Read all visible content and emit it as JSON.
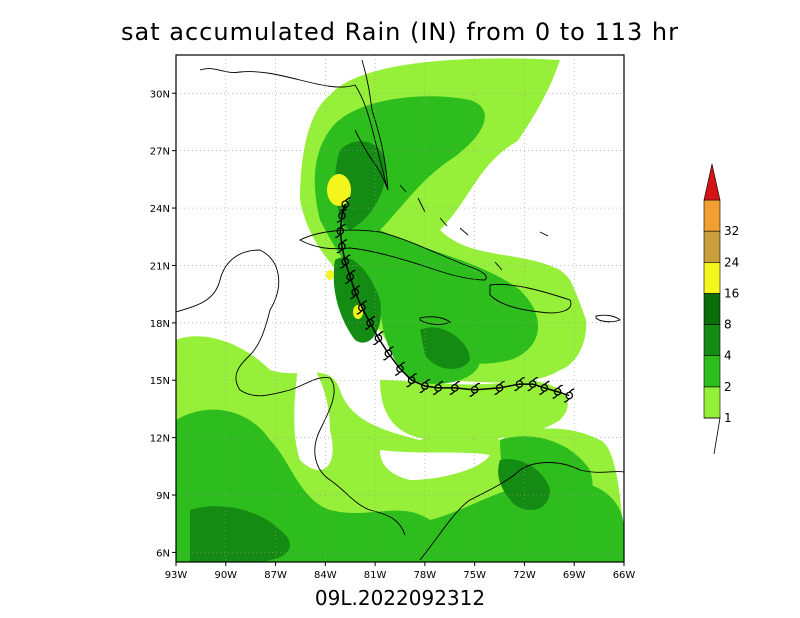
{
  "title": "sat accumulated Rain (IN) from 0 to 113 hr",
  "subtitle": "09L.2022092312",
  "map": {
    "lat_ticks": [
      "30N",
      "27N",
      "24N",
      "21N",
      "18N",
      "15N",
      "12N",
      "9N",
      "6N"
    ],
    "lon_ticks": [
      "93W",
      "90W",
      "87W",
      "84W",
      "81W",
      "78W",
      "75W",
      "72W",
      "69W",
      "66W"
    ],
    "lat_values": [
      30,
      27,
      24,
      21,
      18,
      15,
      12,
      9,
      6
    ],
    "lon_values": [
      -93,
      -90,
      -87,
      -84,
      -81,
      -78,
      -75,
      -72,
      -69,
      -66
    ],
    "lat_range": [
      5.5,
      32.0
    ],
    "lon_range": [
      -93.0,
      -66.0
    ],
    "storm_symbol": "tropical-storm-symbol",
    "track": [
      [
        -69.3,
        14.2
      ],
      [
        -70.0,
        14.4
      ],
      [
        -70.8,
        14.6
      ],
      [
        -71.5,
        14.8
      ],
      [
        -72.3,
        14.8
      ],
      [
        -73.5,
        14.6
      ],
      [
        -75.0,
        14.5
      ],
      [
        -76.2,
        14.6
      ],
      [
        -77.2,
        14.6
      ],
      [
        -78.0,
        14.7
      ],
      [
        -78.8,
        15.0
      ],
      [
        -79.5,
        15.6
      ],
      [
        -80.2,
        16.4
      ],
      [
        -80.8,
        17.2
      ],
      [
        -81.3,
        18.0
      ],
      [
        -81.8,
        18.8
      ],
      [
        -82.2,
        19.6
      ],
      [
        -82.5,
        20.4
      ],
      [
        -82.8,
        21.2
      ],
      [
        -83.0,
        22.0
      ],
      [
        -83.1,
        22.8
      ],
      [
        -83.0,
        23.6
      ],
      [
        -82.8,
        24.2
      ]
    ]
  },
  "legend": {
    "labels": [
      "1",
      "2",
      "4",
      "8",
      "16",
      "24",
      "32"
    ],
    "colors": [
      "#96f03a",
      "#2dbe1e",
      "#148c14",
      "#0a6e0a",
      "#f5f51e",
      "#c8a03c",
      "#f0a032",
      "#d21414"
    ]
  },
  "colors": {
    "light_green": "#96f03a",
    "green": "#2dbe1e",
    "dark_green": "#148c14",
    "yellow": "#f5f51e"
  }
}
